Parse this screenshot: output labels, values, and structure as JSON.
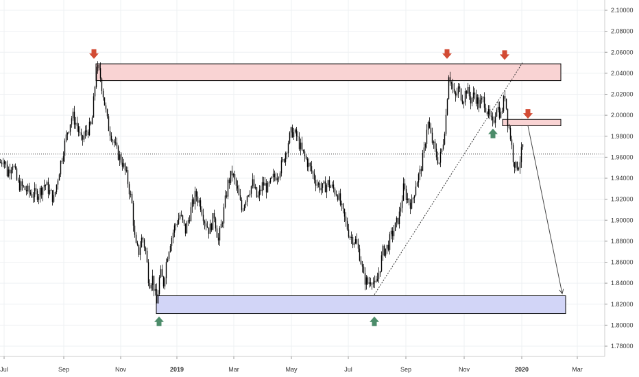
{
  "chart_data": {
    "type": "candlestick",
    "title": "",
    "xlabel": "",
    "ylabel": "",
    "ylim": [
      1.765,
      2.108
    ],
    "grid": true,
    "current_price_line": 1.963,
    "y_ticks": [
      "1.78000",
      "1.80000",
      "1.82000",
      "1.84000",
      "1.86000",
      "1.88000",
      "1.90000",
      "1.92000",
      "1.94000",
      "1.96000",
      "1.98000",
      "2.00000",
      "2.02000",
      "2.04000",
      "2.06000",
      "2.08000",
      "2.10000"
    ],
    "x_ticks": [
      {
        "label": "Jul",
        "bold": false
      },
      {
        "label": "Sep",
        "bold": false
      },
      {
        "label": "Nov",
        "bold": false
      },
      {
        "label": "2019",
        "bold": true
      },
      {
        "label": "Mar",
        "bold": false
      },
      {
        "label": "May",
        "bold": false
      },
      {
        "label": "Jul",
        "bold": false
      },
      {
        "label": "Sep",
        "bold": false
      },
      {
        "label": "Nov",
        "bold": false
      },
      {
        "label": "2020",
        "bold": true
      },
      {
        "label": "Mar",
        "bold": false
      }
    ],
    "price_path": [
      [
        0,
        1.955
      ],
      [
        5,
        1.96
      ],
      [
        10,
        1.945
      ],
      [
        18,
        1.955
      ],
      [
        25,
        1.935
      ],
      [
        35,
        1.93
      ],
      [
        45,
        1.925
      ],
      [
        55,
        1.925
      ],
      [
        65,
        1.935
      ],
      [
        78,
        1.92
      ],
      [
        88,
        1.955
      ],
      [
        98,
        1.985
      ],
      [
        105,
        2.0
      ],
      [
        112,
        1.99
      ],
      [
        118,
        1.975
      ],
      [
        126,
        1.985
      ],
      [
        133,
        1.99
      ],
      [
        137,
        2.02
      ],
      [
        140,
        2.045
      ],
      [
        145,
        2.04
      ],
      [
        150,
        2.02
      ],
      [
        157,
        1.99
      ],
      [
        163,
        1.98
      ],
      [
        170,
        1.965
      ],
      [
        178,
        1.955
      ],
      [
        185,
        1.94
      ],
      [
        192,
        1.915
      ],
      [
        197,
        1.875
      ],
      [
        202,
        1.87
      ],
      [
        207,
        1.885
      ],
      [
        212,
        1.87
      ],
      [
        217,
        1.84
      ],
      [
        222,
        1.845
      ],
      [
        228,
        1.82
      ],
      [
        233,
        1.85
      ],
      [
        238,
        1.84
      ],
      [
        243,
        1.865
      ],
      [
        248,
        1.88
      ],
      [
        255,
        1.895
      ],
      [
        262,
        1.905
      ],
      [
        270,
        1.89
      ],
      [
        278,
        1.91
      ],
      [
        285,
        1.925
      ],
      [
        292,
        1.915
      ],
      [
        298,
        1.9
      ],
      [
        305,
        1.89
      ],
      [
        312,
        1.905
      ],
      [
        318,
        1.88
      ],
      [
        325,
        1.905
      ],
      [
        332,
        1.935
      ],
      [
        338,
        1.945
      ],
      [
        345,
        1.93
      ],
      [
        352,
        1.91
      ],
      [
        360,
        1.925
      ],
      [
        368,
        1.935
      ],
      [
        375,
        1.92
      ],
      [
        383,
        1.935
      ],
      [
        390,
        1.93
      ],
      [
        398,
        1.94
      ],
      [
        405,
        1.945
      ],
      [
        412,
        1.955
      ],
      [
        420,
        1.975
      ],
      [
        425,
        1.985
      ],
      [
        432,
        1.98
      ],
      [
        440,
        1.965
      ],
      [
        448,
        1.955
      ],
      [
        455,
        1.945
      ],
      [
        462,
        1.935
      ],
      [
        470,
        1.93
      ],
      [
        478,
        1.935
      ],
      [
        485,
        1.93
      ],
      [
        492,
        1.925
      ],
      [
        498,
        1.91
      ],
      [
        505,
        1.895
      ],
      [
        510,
        1.885
      ],
      [
        518,
        1.88
      ],
      [
        525,
        1.865
      ],
      [
        530,
        1.845
      ],
      [
        536,
        1.84
      ],
      [
        542,
        1.845
      ],
      [
        547,
        1.835
      ],
      [
        552,
        1.85
      ],
      [
        558,
        1.87
      ],
      [
        565,
        1.875
      ],
      [
        570,
        1.885
      ],
      [
        577,
        1.895
      ],
      [
        582,
        1.905
      ],
      [
        588,
        1.93
      ],
      [
        594,
        1.92
      ],
      [
        600,
        1.915
      ],
      [
        606,
        1.935
      ],
      [
        612,
        1.945
      ],
      [
        618,
        1.965
      ],
      [
        623,
        1.995
      ],
      [
        628,
        1.98
      ],
      [
        634,
        1.965
      ],
      [
        640,
        1.955
      ],
      [
        645,
        1.97
      ],
      [
        650,
        2.0
      ],
      [
        654,
        2.04
      ],
      [
        658,
        2.03
      ],
      [
        663,
        2.015
      ],
      [
        668,
        2.025
      ],
      [
        675,
        2.015
      ],
      [
        680,
        2.025
      ],
      [
        686,
        2.015
      ],
      [
        692,
        2.02
      ],
      [
        698,
        2.01
      ],
      [
        705,
        2.015
      ],
      [
        712,
        2.0
      ],
      [
        718,
        1.99
      ],
      [
        724,
        2.01
      ],
      [
        730,
        2.0
      ],
      [
        736,
        2.02
      ],
      [
        740,
        1.995
      ],
      [
        744,
        1.98
      ],
      [
        748,
        1.96
      ],
      [
        752,
        1.95
      ],
      [
        757,
        1.955
      ],
      [
        762,
        1.97
      ]
    ],
    "zones": [
      {
        "name": "resistance-zone-top",
        "y_low": 2.033,
        "y_high": 2.049,
        "x_from": 140,
        "x_to": 818,
        "fill": "#f9d3d3",
        "stroke": "#000000"
      },
      {
        "name": "resistance-zone-small",
        "y_low": 1.99,
        "y_high": 1.996,
        "x_from": 733,
        "x_to": 818,
        "fill": "#f9d3d3",
        "stroke": "#000000"
      },
      {
        "name": "support-zone",
        "y_low": 1.811,
        "y_high": 1.828,
        "x_from": 228,
        "x_to": 825,
        "fill": "#d2d5f7",
        "stroke": "#000000"
      }
    ],
    "down_arrows_at": [
      [
        137,
        2.057
      ],
      [
        652,
        2.057
      ],
      [
        736,
        2.056
      ],
      [
        770,
        2.0
      ]
    ],
    "up_arrows_at": [
      [
        232,
        1.805
      ],
      [
        546,
        1.805
      ],
      [
        719,
        1.984
      ]
    ],
    "trendline_dotted": [
      [
        546,
        1.829
      ],
      [
        762,
        2.05
      ]
    ],
    "projection_arrow": [
      [
        770,
        1.99
      ],
      [
        820,
        1.83
      ]
    ],
    "colors": {
      "up_marker": "#4c8c6a",
      "down_marker": "#d24b34",
      "candle": "#000000",
      "grid": "#eef0f3",
      "price_line": "#333333"
    }
  }
}
